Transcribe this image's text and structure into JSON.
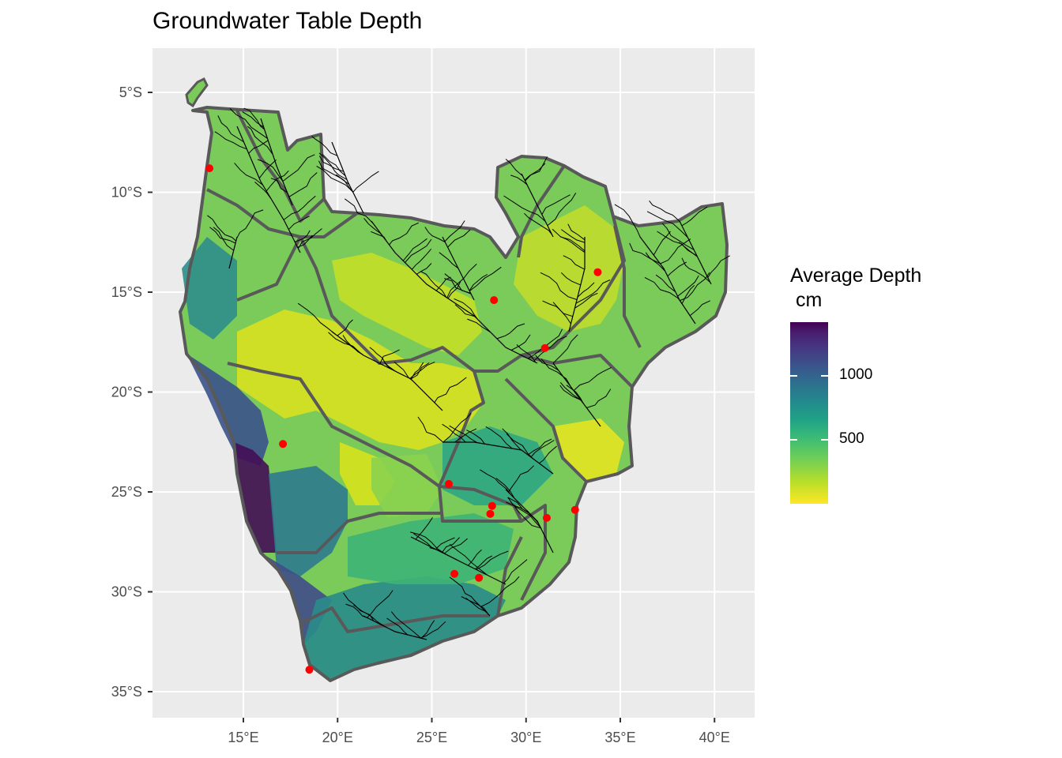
{
  "title": "Groundwater Table Depth",
  "axes": {
    "x_ticks": [
      "15°E",
      "20°E",
      "25°E",
      "30°E",
      "35°E",
      "40°E"
    ],
    "y_ticks": [
      "5°S",
      "10°S",
      "15°S",
      "20°S",
      "25°S",
      "30°S",
      "35°S"
    ]
  },
  "legend": {
    "title": "Average Depth\n cm",
    "ticks": [
      {
        "label": "1000",
        "value": 1000
      },
      {
        "label": "500",
        "value": 500
      }
    ],
    "range": [
      0,
      1420
    ],
    "palette": [
      "#FDE725",
      "#B8DE29",
      "#74D055",
      "#3CBC75",
      "#20A386",
      "#238A8D",
      "#2D708E",
      "#3A548C",
      "#453781",
      "#481F70",
      "#440154"
    ]
  },
  "colors": {
    "panel_background": "#EBEBEB",
    "grid": "#FFFFFF",
    "basin_border": "#595959",
    "rivers": "#000000",
    "stations": "#FF0000"
  },
  "stations": [
    {
      "lon": 13.2,
      "lat": -8.8
    },
    {
      "lon": 33.8,
      "lat": -14.0
    },
    {
      "lon": 28.3,
      "lat": -15.4
    },
    {
      "lon": 31.0,
      "lat": -17.8
    },
    {
      "lon": 17.1,
      "lat": -22.6
    },
    {
      "lon": 25.9,
      "lat": -24.6
    },
    {
      "lon": 28.2,
      "lat": -25.7
    },
    {
      "lon": 28.1,
      "lat": -26.1
    },
    {
      "lon": 31.1,
      "lat": -26.3
    },
    {
      "lon": 32.6,
      "lat": -25.9
    },
    {
      "lon": 26.2,
      "lat": -29.1
    },
    {
      "lon": 27.5,
      "lat": -29.3
    },
    {
      "lon": 18.5,
      "lat": -33.9
    }
  ]
}
